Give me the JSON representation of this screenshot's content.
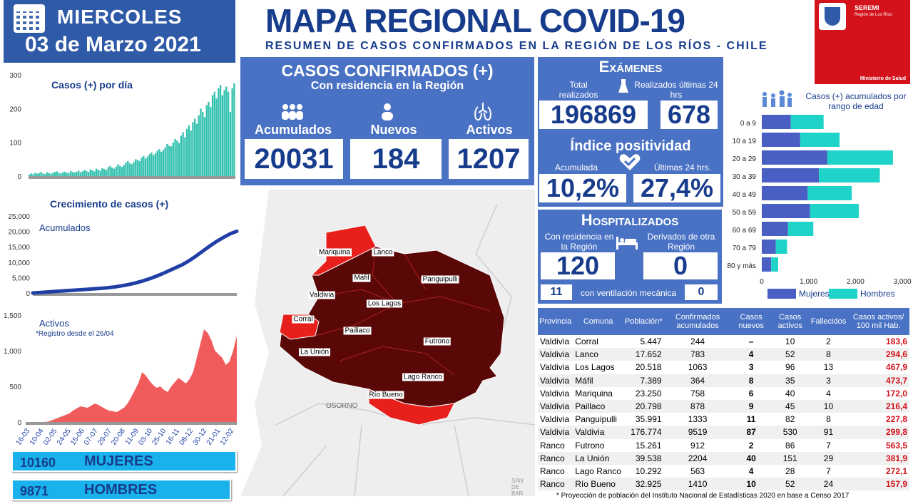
{
  "header": {
    "day": "MIERCOLES",
    "date": "03 de Marzo 2021",
    "title": "MAPA REGIONAL COVID-19",
    "subtitle": "RESUMEN DE CASOS CONFIRMADOS EN LA REGIÓN DE LOS RÍOS - CHILE",
    "logo_title": "SEREMI",
    "logo_sub": "Región de Los Ríos",
    "logo_ministry": "Ministerio de Salud"
  },
  "confirmed": {
    "title": "CASOS CONFIRMADOS (+)",
    "subtitle": "Con residencia en la Región",
    "accum_label": "Acumulados",
    "accum_value": "20031",
    "new_label": "Nuevos",
    "new_value": "184",
    "active_label": "Activos",
    "active_value": "1207"
  },
  "exams": {
    "title": "Exámenes",
    "total_label": "Total realizados",
    "total_value": "196869",
    "last_label": "Realizados últimas 24 hrs",
    "last_value": "678",
    "pos_title": "Índice positividad",
    "pos_acc_label": "Acumulada",
    "pos_acc_value": "10,2%",
    "pos_last_label": "Últimas 24 hrs.",
    "pos_last_value": "27,4%"
  },
  "hospital": {
    "title": "Hospitalizados",
    "res_label": "Con residencia en la Región",
    "res_value": "120",
    "der_label": "Derivados de otra Región",
    "der_value": "0",
    "vent_left": "11",
    "vent_label": "con ventilación mecánica",
    "vent_right": "0"
  },
  "gender": {
    "women_value": "10160",
    "women_label": "MUJERES",
    "men_value": "9871",
    "men_label": "HOMBRES"
  },
  "map": {
    "comunas": [
      "Mariquina",
      "Lanco",
      "Máfil",
      "Panguipulli",
      "Valdivia",
      "Los Lagos",
      "Corral",
      "Paillaco",
      "Futrono",
      "La Unión",
      "Lago Ranco",
      "Río Bueno"
    ],
    "city": "OSORNO",
    "corner": "SAN\nDE\nBAR"
  },
  "chart_data": [
    {
      "type": "bar",
      "title": "Casos (+) por día",
      "ylim": [
        0,
        300
      ],
      "yticks": [
        "0",
        "100",
        "200",
        "300"
      ],
      "color": "#36c2b0",
      "note": "daily values approximated",
      "values": [
        5,
        8,
        6,
        10,
        7,
        9,
        12,
        8,
        6,
        11,
        9,
        7,
        10,
        12,
        14,
        9,
        8,
        11,
        13,
        10,
        9,
        15,
        12,
        10,
        13,
        16,
        11,
        14,
        18,
        15,
        12,
        20,
        17,
        14,
        22,
        19,
        16,
        24,
        21,
        18,
        26,
        30,
        25,
        22,
        28,
        35,
        30,
        27,
        33,
        40,
        45,
        38,
        35,
        42,
        50,
        48,
        44,
        55,
        60,
        52,
        58,
        65,
        70,
        62,
        68,
        75,
        80,
        72,
        78,
        85,
        95,
        90,
        88,
        100,
        110,
        105,
        98,
        120,
        130,
        115,
        140,
        150,
        135,
        160,
        170,
        155,
        180,
        200,
        190,
        175,
        210,
        220,
        205,
        240,
        250,
        230,
        260,
        270,
        240,
        255,
        265,
        250,
        190,
        260,
        275
      ]
    },
    {
      "type": "line",
      "title": "Crecimiento de casos (+)",
      "series": [
        {
          "name": "Acumulados"
        }
      ],
      "ylim": [
        0,
        25000
      ],
      "yticks": [
        "0",
        "5,000",
        "10,000",
        "15,000",
        "20,000",
        "25,000"
      ],
      "values": [
        0,
        150,
        300,
        450,
        600,
        750,
        900,
        1050,
        1200,
        1350,
        1500,
        1700,
        1950,
        2300,
        2700,
        3200,
        3800,
        4500,
        5300,
        6200,
        7200,
        8200,
        9200,
        10500,
        12000,
        13600,
        15200,
        16700,
        18000,
        19200,
        20031
      ]
    },
    {
      "type": "area",
      "title": "Activos",
      "note_label": "*Registro desde el 26/04",
      "ylim": [
        0,
        1500
      ],
      "yticks": [
        "0",
        "500",
        "1,000",
        "1,500"
      ],
      "xticks": [
        "16-03",
        "10-04",
        "02-05",
        "24-05",
        "15-06",
        "07-07",
        "29-07",
        "20-08",
        "11-09",
        "03-10",
        "25-10",
        "16-11",
        "08-12",
        "30-12",
        "21-01",
        "12-02"
      ],
      "values": [
        0,
        0,
        0,
        0,
        0,
        0,
        5,
        20,
        40,
        60,
        80,
        100,
        120,
        160,
        190,
        220,
        210,
        200,
        230,
        260,
        240,
        210,
        180,
        160,
        150,
        140,
        170,
        200,
        260,
        350,
        450,
        550,
        700,
        650,
        580,
        520,
        480,
        500,
        450,
        420,
        500,
        560,
        620,
        580,
        540,
        600,
        700,
        900,
        1100,
        1300,
        1250,
        1150,
        1000,
        950,
        900,
        800,
        850,
        1000,
        1207
      ]
    },
    {
      "type": "bar",
      "title": "Casos (+) acumulados por rango de edad",
      "categories": [
        "0 a 9",
        "10 a 19",
        "20 a 29",
        "30 a 39",
        "40 a 49",
        "50 a 59",
        "60 a 69",
        "70 a 79",
        "80 y más"
      ],
      "xlim": [
        0,
        3000
      ],
      "xticks": [
        "0",
        "1,000",
        "2,000",
        "3,000"
      ],
      "series": [
        {
          "name": "Mujeres",
          "color": "#4a5fc4",
          "values": [
            620,
            820,
            1400,
            1220,
            980,
            1030,
            560,
            300,
            200
          ]
        },
        {
          "name": "Hombres",
          "color": "#1fd3c8",
          "values": [
            700,
            840,
            1400,
            1300,
            940,
            1040,
            540,
            240,
            150
          ]
        }
      ]
    }
  ],
  "table": {
    "headers": [
      "Provincia",
      "Comuna",
      "Población*",
      "Confirmados acumulados",
      "Casos nuevos",
      "Casos activos",
      "Fallecidos",
      "Casos activos/ 100 mil Hab."
    ],
    "rows": [
      [
        "Valdivia",
        "Corral",
        "5.447",
        "244",
        "–",
        "10",
        "2",
        "183,6"
      ],
      [
        "Valdivia",
        "Lanco",
        "17.652",
        "783",
        "4",
        "52",
        "8",
        "294,6"
      ],
      [
        "Valdivia",
        "Los Lagos",
        "20.518",
        "1063",
        "3",
        "96",
        "13",
        "467,9"
      ],
      [
        "Valdivia",
        "Máfil",
        "7.389",
        "364",
        "8",
        "35",
        "3",
        "473,7"
      ],
      [
        "Valdivia",
        "Mariquina",
        "23.250",
        "758",
        "6",
        "40",
        "4",
        "172,0"
      ],
      [
        "Valdivia",
        "Paillaco",
        "20.798",
        "878",
        "9",
        "45",
        "10",
        "216,4"
      ],
      [
        "Valdivia",
        "Panguipulli",
        "35.991",
        "1333",
        "11",
        "82",
        "8",
        "227,8"
      ],
      [
        "Valdivia",
        "Valdivia",
        "176.774",
        "9519",
        "87",
        "530",
        "91",
        "299,8"
      ],
      [
        "Ranco",
        "Futrono",
        "15.261",
        "912",
        "2",
        "86",
        "7",
        "563,5"
      ],
      [
        "Ranco",
        "La Unión",
        "39.538",
        "2204",
        "40",
        "151",
        "29",
        "381,9"
      ],
      [
        "Ranco",
        "Lago Ranco",
        "10.292",
        "563",
        "4",
        "28",
        "7",
        "272,1"
      ],
      [
        "Ranco",
        "Río Bueno",
        "32.925",
        "1410",
        "10",
        "52",
        "24",
        "157,9"
      ]
    ],
    "footnote": "*  Proyección de población del Instituto Nacional de Estadísticas 2020 en base a Censo 2017"
  }
}
